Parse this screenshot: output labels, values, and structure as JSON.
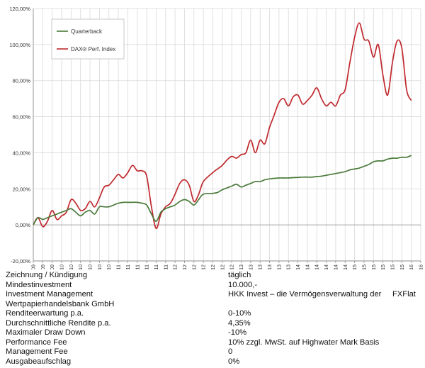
{
  "chart_data": {
    "type": "line",
    "title": "",
    "xlabel": "",
    "ylabel": "",
    "ylim": [
      -20,
      120
    ],
    "y_ticks": [
      "-20,00%",
      "0,00%",
      "20,00%",
      "40,00%",
      "60,00%",
      "80,00%",
      "100,00%",
      "120,00%"
    ],
    "x_ticks": [
      "JUL 09",
      "SEP 09",
      "NOV 09",
      "JAN 10",
      "MRZ 10",
      "MAI 10",
      "JUL 10",
      "SEP 10",
      "NOV 10",
      "JAN 11",
      "MRZ 11",
      "MAI 11",
      "JUL 11",
      "SEP 11",
      "NOV 11",
      "JAN 12",
      "MRZ 12",
      "MAI 12",
      "JUL 12",
      "AUG 12",
      "OKT 12",
      "DEZ 12",
      "FEB 13",
      "APR 13",
      "JUN 13",
      "AUG 13",
      "OKT 13",
      "DEZ 13",
      "FEB 14",
      "APR 14",
      "JUN 14",
      "AUG 14",
      "OKT 14",
      "DEZ 14",
      "FEB 15",
      "APR 15",
      "JUN 15",
      "AUG 15",
      "OKT 15",
      "DEZ 15",
      "FEB 16",
      "APR 16"
    ],
    "grid": true,
    "legend_position": "top-left",
    "series": [
      {
        "name": "Quarterback",
        "color": "#4a7a3a",
        "points": [
          [
            "2009-07",
            0
          ],
          [
            "2009-08",
            4
          ],
          [
            "2009-09",
            3
          ],
          [
            "2009-10",
            4
          ],
          [
            "2009-11",
            5
          ],
          [
            "2009-12",
            6
          ],
          [
            "2010-01",
            7
          ],
          [
            "2010-02",
            8
          ],
          [
            "2010-03",
            9
          ],
          [
            "2010-04",
            7
          ],
          [
            "2010-05",
            5
          ],
          [
            "2010-06",
            7
          ],
          [
            "2010-07",
            8
          ],
          [
            "2010-08",
            6
          ],
          [
            "2010-09",
            10
          ],
          [
            "2010-10",
            10
          ],
          [
            "2010-11",
            10
          ],
          [
            "2010-12",
            11
          ],
          [
            "2011-01",
            12
          ],
          [
            "2011-02",
            12.5
          ],
          [
            "2011-03",
            12.5
          ],
          [
            "2011-04",
            12.5
          ],
          [
            "2011-05",
            12.5
          ],
          [
            "2011-06",
            12
          ],
          [
            "2011-07",
            11
          ],
          [
            "2011-08",
            6
          ],
          [
            "2011-09",
            2
          ],
          [
            "2011-10",
            7
          ],
          [
            "2011-11",
            9
          ],
          [
            "2011-12",
            10
          ],
          [
            "2012-01",
            11
          ],
          [
            "2012-02",
            13
          ],
          [
            "2012-03",
            14
          ],
          [
            "2012-04",
            13
          ],
          [
            "2012-05",
            11
          ],
          [
            "2012-06",
            14
          ],
          [
            "2012-07",
            17
          ],
          [
            "2012-08",
            17.5
          ],
          [
            "2012-09",
            18
          ],
          [
            "2012-10",
            19.5
          ],
          [
            "2012-11",
            20.5
          ],
          [
            "2012-12",
            21.5
          ],
          [
            "2013-01",
            22.5
          ],
          [
            "2013-02",
            21
          ],
          [
            "2013-03",
            22
          ],
          [
            "2013-04",
            23
          ],
          [
            "2013-05",
            24
          ],
          [
            "2013-06",
            24
          ],
          [
            "2013-07",
            25
          ],
          [
            "2013-08",
            25.5
          ],
          [
            "2013-09",
            25.8
          ],
          [
            "2013-10",
            26
          ],
          [
            "2013-11",
            26
          ],
          [
            "2013-12",
            26
          ],
          [
            "2014-01",
            26.2
          ],
          [
            "2014-02",
            26.3
          ],
          [
            "2014-03",
            26.5
          ],
          [
            "2014-04",
            26.5
          ],
          [
            "2014-05",
            26.5
          ],
          [
            "2014-06",
            26.8
          ],
          [
            "2014-07",
            27
          ],
          [
            "2014-08",
            27.5
          ],
          [
            "2014-09",
            28
          ],
          [
            "2014-10",
            28.5
          ],
          [
            "2014-11",
            29
          ],
          [
            "2014-12",
            29.5
          ],
          [
            "2015-01",
            30.5
          ],
          [
            "2015-02",
            31
          ],
          [
            "2015-03",
            31.5
          ],
          [
            "2015-04",
            32.5
          ],
          [
            "2015-05",
            33.5
          ],
          [
            "2015-06",
            35
          ],
          [
            "2015-07",
            35.5
          ],
          [
            "2015-08",
            35.5
          ],
          [
            "2015-09",
            36.5
          ],
          [
            "2015-10",
            37
          ],
          [
            "2015-11",
            37
          ],
          [
            "2015-12",
            37.5
          ],
          [
            "2016-01",
            37.5
          ],
          [
            "2016-02",
            38.5
          ]
        ]
      },
      {
        "name": "DAX® Perf. Index",
        "color": "#c0282d",
        "points": [
          [
            "2009-07",
            0
          ],
          [
            "2009-08",
            4
          ],
          [
            "2009-09",
            -1
          ],
          [
            "2009-10",
            2
          ],
          [
            "2009-11",
            8
          ],
          [
            "2009-12",
            3
          ],
          [
            "2010-01",
            5
          ],
          [
            "2010-02",
            7
          ],
          [
            "2010-03",
            14
          ],
          [
            "2010-04",
            12
          ],
          [
            "2010-05",
            8
          ],
          [
            "2010-06",
            9
          ],
          [
            "2010-07",
            13
          ],
          [
            "2010-08",
            10
          ],
          [
            "2010-09",
            15
          ],
          [
            "2010-10",
            21
          ],
          [
            "2010-11",
            22
          ],
          [
            "2010-12",
            25
          ],
          [
            "2011-01",
            28
          ],
          [
            "2011-02",
            26
          ],
          [
            "2011-03",
            29
          ],
          [
            "2011-04",
            33
          ],
          [
            "2011-05",
            30
          ],
          [
            "2011-06",
            30
          ],
          [
            "2011-07",
            27
          ],
          [
            "2011-08",
            10
          ],
          [
            "2011-09",
            -2
          ],
          [
            "2011-10",
            6
          ],
          [
            "2011-11",
            10
          ],
          [
            "2011-12",
            12
          ],
          [
            "2012-01",
            17
          ],
          [
            "2012-02",
            23
          ],
          [
            "2012-03",
            25
          ],
          [
            "2012-04",
            22
          ],
          [
            "2012-05",
            13
          ],
          [
            "2012-06",
            17
          ],
          [
            "2012-07",
            24
          ],
          [
            "2012-08",
            29
          ],
          [
            "2012-09",
            31
          ],
          [
            "2012-10",
            33
          ],
          [
            "2012-11",
            36
          ],
          [
            "2012-12",
            38
          ],
          [
            "2013-01",
            37
          ],
          [
            "2013-02",
            39
          ],
          [
            "2013-03",
            40
          ],
          [
            "2013-04",
            47
          ],
          [
            "2013-05",
            40
          ],
          [
            "2013-06",
            47
          ],
          [
            "2013-07",
            45
          ],
          [
            "2013-08",
            54
          ],
          [
            "2013-09",
            61
          ],
          [
            "2013-10",
            68
          ],
          [
            "2013-11",
            70
          ],
          [
            "2013-12",
            66
          ],
          [
            "2014-01",
            71
          ],
          [
            "2014-02",
            72
          ],
          [
            "2014-03",
            67
          ],
          [
            "2014-04",
            69
          ],
          [
            "2014-05",
            72
          ],
          [
            "2014-06",
            76
          ],
          [
            "2014-07",
            70
          ],
          [
            "2014-08",
            66
          ],
          [
            "2014-09",
            68
          ],
          [
            "2014-10",
            66
          ],
          [
            "2014-11",
            72
          ],
          [
            "2014-12",
            75
          ],
          [
            "2015-01",
            90
          ],
          [
            "2015-02",
            104
          ],
          [
            "2015-03",
            112
          ],
          [
            "2015-04",
            103
          ],
          [
            "2015-05",
            102
          ],
          [
            "2015-06",
            93
          ],
          [
            "2015-07",
            100
          ],
          [
            "2015-08",
            83
          ],
          [
            "2015-09",
            72
          ],
          [
            "2015-10",
            90
          ],
          [
            "2015-11",
            102
          ],
          [
            "2015-12",
            98
          ],
          [
            "2016-01",
            75
          ],
          [
            "2016-02",
            69
          ]
        ]
      }
    ]
  },
  "info": [
    {
      "label": "Zeichnung / Kündigung",
      "value": "täglich"
    },
    {
      "label": "Mindestinvestment",
      "value": "10.000,-"
    },
    {
      "label": "Investment Management",
      "value": "HKK Invest – die Vermögensverwaltung der     FXFlat"
    },
    {
      "label": "Wertpapierhandelsbank GmbH",
      "value": ""
    },
    {
      "label": "Renditeerwartung p.a.",
      "value": "0-10%"
    },
    {
      "label": "Durchschnittliche Rendite p.a.",
      "value": "4,35%"
    },
    {
      "label": "Maximaler Draw Down",
      "value": "-10%"
    },
    {
      "label": "Performance Fee",
      "value": "10% zzgl. MwSt. auf Highwater Mark Basis"
    },
    {
      "label": "Management Fee",
      "value": "0"
    },
    {
      "label": "Ausgabeaufschlag",
      "value": "0%"
    }
  ]
}
